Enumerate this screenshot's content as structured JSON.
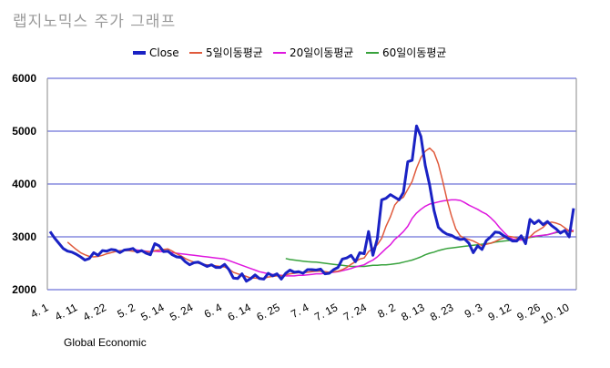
{
  "chart_data": {
    "type": "line",
    "title": "랩지노믹스 주가 그래프",
    "source": "Global Economic",
    "ylim": [
      2000,
      6000
    ],
    "yticks": [
      2000,
      3000,
      4000,
      5000,
      6000
    ],
    "xticks": [
      "4. 1",
      "4. 11",
      "4. 22",
      "5. 2",
      "5. 14",
      "5. 24",
      "6. 4",
      "6. 14",
      "6. 25",
      "7. 4",
      "7. 15",
      "7. 24",
      "8. 2",
      "8. 13",
      "8. 23",
      "9. 3",
      "9. 12",
      "9. 26",
      "10. 10"
    ],
    "legend_position": "top",
    "grid": true,
    "series": [
      {
        "name": "Close",
        "color": "#1a22c4",
        "values": [
          3100,
          2980,
          2880,
          2780,
          2730,
          2710,
          2670,
          2620,
          2560,
          2590,
          2700,
          2650,
          2740,
          2730,
          2760,
          2750,
          2700,
          2750,
          2760,
          2780,
          2710,
          2740,
          2690,
          2660,
          2870,
          2830,
          2720,
          2730,
          2660,
          2620,
          2610,
          2530,
          2470,
          2510,
          2520,
          2480,
          2440,
          2470,
          2420,
          2420,
          2480,
          2380,
          2220,
          2210,
          2300,
          2160,
          2210,
          2280,
          2210,
          2200,
          2310,
          2260,
          2300,
          2200,
          2310,
          2370,
          2330,
          2340,
          2310,
          2380,
          2380,
          2370,
          2390,
          2300,
          2310,
          2380,
          2420,
          2580,
          2600,
          2650,
          2530,
          2700,
          2680,
          3100,
          2650,
          2960,
          3700,
          3730,
          3800,
          3750,
          3700,
          3840,
          4420,
          4450,
          5100,
          4900,
          4350,
          3980,
          3500,
          3180,
          3100,
          3050,
          3030,
          2980,
          2950,
          2960,
          2880,
          2700,
          2830,
          2760,
          2930,
          3000,
          3090,
          3080,
          3020,
          2970,
          2920,
          2920,
          3020,
          2870,
          3330,
          3250,
          3310,
          3230,
          3290,
          3210,
          3150,
          3070,
          3120,
          3000,
          3540
        ]
      },
      {
        "name": "5일이동평균",
        "color": "#e05a3c",
        "values": [
          null,
          null,
          null,
          null,
          2900,
          2830,
          2760,
          2700,
          2660,
          2630,
          2620,
          2630,
          2650,
          2680,
          2700,
          2720,
          2740,
          2740,
          2740,
          2730,
          2720,
          2720,
          2720,
          2710,
          2740,
          2750,
          2760,
          2770,
          2730,
          2680,
          2640,
          2590,
          2550,
          2520,
          2500,
          2480,
          2470,
          2460,
          2450,
          2440,
          2430,
          2390,
          2330,
          2300,
          2280,
          2250,
          2220,
          2220,
          2210,
          2210,
          2240,
          2250,
          2260,
          2260,
          2280,
          2300,
          2310,
          2320,
          2320,
          2330,
          2340,
          2350,
          2350,
          2340,
          2330,
          2340,
          2350,
          2380,
          2420,
          2480,
          2530,
          2580,
          2600,
          2720,
          2780,
          2850,
          2970,
          3200,
          3380,
          3600,
          3700,
          3750,
          3900,
          4050,
          4300,
          4500,
          4620,
          4680,
          4600,
          4380,
          4050,
          3700,
          3400,
          3150,
          3020,
          2970,
          2950,
          2920,
          2880,
          2830,
          2860,
          2880,
          2910,
          2950,
          2980,
          3010,
          3000,
          2980,
          2970,
          2960,
          3000,
          3080,
          3130,
          3180,
          3260,
          3280,
          3260,
          3230,
          3170,
          3110,
          3100
        ]
      },
      {
        "name": "20일이동평균",
        "color": "#de17de",
        "values": [
          null,
          null,
          null,
          null,
          null,
          null,
          null,
          null,
          null,
          null,
          null,
          null,
          null,
          null,
          null,
          null,
          null,
          null,
          null,
          2760,
          2750,
          2740,
          2730,
          2720,
          2730,
          2720,
          2720,
          2710,
          2700,
          2690,
          2680,
          2670,
          2660,
          2650,
          2640,
          2630,
          2620,
          2610,
          2600,
          2590,
          2580,
          2550,
          2520,
          2490,
          2460,
          2430,
          2400,
          2370,
          2340,
          2320,
          2300,
          2290,
          2280,
          2270,
          2260,
          2260,
          2260,
          2270,
          2270,
          2280,
          2290,
          2300,
          2300,
          2310,
          2320,
          2330,
          2340,
          2360,
          2380,
          2400,
          2430,
          2450,
          2470,
          2520,
          2560,
          2620,
          2700,
          2780,
          2850,
          2950,
          3020,
          3100,
          3200,
          3350,
          3450,
          3520,
          3580,
          3620,
          3640,
          3660,
          3680,
          3690,
          3700,
          3700,
          3690,
          3650,
          3600,
          3560,
          3520,
          3470,
          3430,
          3360,
          3280,
          3180,
          3090,
          3010,
          2960,
          2940,
          2940,
          2960,
          3000,
          3010,
          3020,
          3030,
          3040,
          3060,
          3090,
          3100,
          3110,
          3120,
          3120
        ]
      },
      {
        "name": "60일이동평균",
        "color": "#38a23d",
        "values": [
          null,
          null,
          null,
          null,
          null,
          null,
          null,
          null,
          null,
          null,
          null,
          null,
          null,
          null,
          null,
          null,
          null,
          null,
          null,
          null,
          null,
          null,
          null,
          null,
          null,
          null,
          null,
          null,
          null,
          null,
          null,
          null,
          null,
          null,
          null,
          null,
          null,
          null,
          null,
          null,
          null,
          null,
          null,
          null,
          null,
          null,
          null,
          null,
          null,
          null,
          null,
          null,
          null,
          null,
          2590,
          2570,
          2560,
          2550,
          2540,
          2530,
          2525,
          2520,
          2510,
          2500,
          2490,
          2480,
          2470,
          2460,
          2450,
          2440,
          2440,
          2440,
          2440,
          2450,
          2460,
          2460,
          2470,
          2470,
          2480,
          2490,
          2500,
          2520,
          2540,
          2560,
          2590,
          2620,
          2660,
          2690,
          2710,
          2740,
          2760,
          2780,
          2790,
          2800,
          2810,
          2820,
          2830,
          2840,
          2850,
          2860,
          2870,
          2880,
          2900,
          2910,
          2920,
          2930,
          2940,
          2950,
          2960,
          2970,
          2990,
          3000,
          3010,
          3030,
          3040,
          3060,
          3080,
          3090,
          3100,
          3110,
          3120
        ]
      }
    ]
  }
}
